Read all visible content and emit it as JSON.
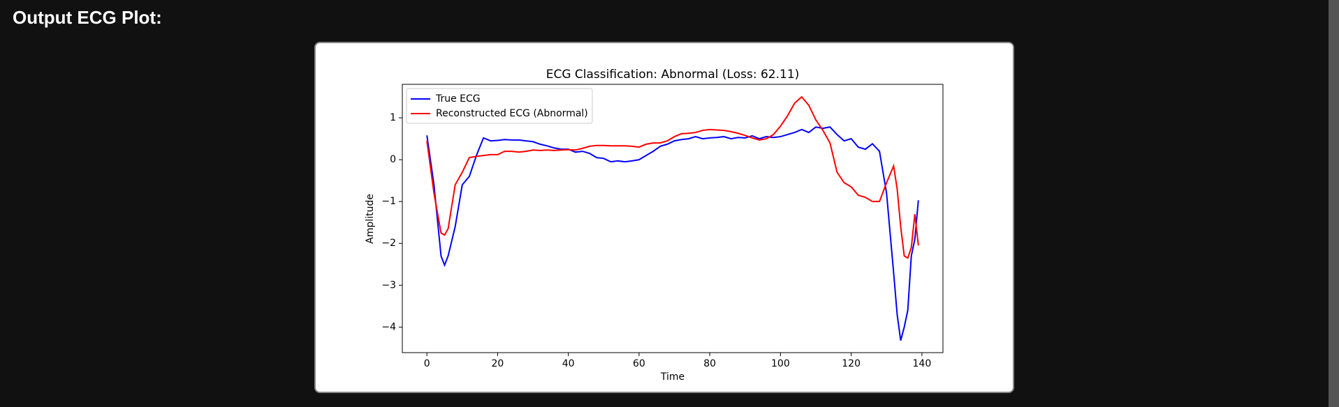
{
  "heading": "Output ECG Plot:",
  "chart_data": {
    "type": "line",
    "title": "ECG Classification: Abnormal (Loss: 62.11)",
    "xlabel": "Time",
    "ylabel": "Amplitude",
    "x": [
      0,
      2,
      4,
      5,
      6,
      8,
      10,
      12,
      14,
      16,
      18,
      20,
      22,
      24,
      26,
      28,
      30,
      32,
      34,
      36,
      38,
      40,
      42,
      44,
      46,
      48,
      50,
      52,
      54,
      56,
      58,
      60,
      62,
      64,
      66,
      68,
      70,
      72,
      74,
      76,
      78,
      80,
      82,
      84,
      86,
      88,
      90,
      92,
      94,
      96,
      98,
      100,
      102,
      104,
      106,
      108,
      110,
      112,
      114,
      116,
      118,
      120,
      122,
      124,
      126,
      128,
      130,
      132,
      133,
      134,
      135,
      136,
      137,
      138,
      139
    ],
    "series": [
      {
        "name": "True ECG",
        "color": "#0000ff",
        "values": [
          0.58,
          -0.6,
          -2.3,
          -2.52,
          -2.3,
          -1.6,
          -0.6,
          -0.4,
          0.1,
          0.52,
          0.45,
          0.46,
          0.48,
          0.47,
          0.47,
          0.45,
          0.43,
          0.37,
          0.33,
          0.28,
          0.25,
          0.25,
          0.18,
          0.2,
          0.15,
          0.05,
          0.03,
          -0.05,
          -0.03,
          -0.05,
          -0.03,
          0.0,
          0.1,
          0.2,
          0.32,
          0.37,
          0.45,
          0.48,
          0.5,
          0.55,
          0.5,
          0.52,
          0.53,
          0.55,
          0.5,
          0.53,
          0.52,
          0.57,
          0.5,
          0.55,
          0.53,
          0.55,
          0.6,
          0.65,
          0.72,
          0.65,
          0.78,
          0.75,
          0.78,
          0.6,
          0.45,
          0.5,
          0.3,
          0.25,
          0.38,
          0.2,
          -0.8,
          -2.7,
          -3.7,
          -4.32,
          -4.0,
          -3.6,
          -2.3,
          -1.9,
          -0.97
        ]
      },
      {
        "name": "Reconstructed ECG (Abnormal)",
        "color": "#ff0000",
        "values": [
          0.45,
          -0.8,
          -1.75,
          -1.8,
          -1.65,
          -0.6,
          -0.3,
          0.05,
          0.08,
          0.1,
          0.12,
          0.12,
          0.2,
          0.2,
          0.18,
          0.2,
          0.23,
          0.22,
          0.23,
          0.22,
          0.23,
          0.24,
          0.23,
          0.27,
          0.32,
          0.34,
          0.34,
          0.33,
          0.33,
          0.33,
          0.32,
          0.3,
          0.37,
          0.4,
          0.4,
          0.45,
          0.55,
          0.62,
          0.63,
          0.65,
          0.7,
          0.72,
          0.71,
          0.7,
          0.67,
          0.63,
          0.58,
          0.52,
          0.47,
          0.5,
          0.6,
          0.8,
          1.05,
          1.35,
          1.5,
          1.3,
          0.95,
          0.7,
          0.4,
          -0.3,
          -0.55,
          -0.65,
          -0.85,
          -0.9,
          -1.0,
          -1.0,
          -0.55,
          -0.15,
          -0.7,
          -1.6,
          -2.3,
          -2.35,
          -2.1,
          -1.3,
          -2.05
        ]
      }
    ],
    "xlim": [
      -6.95,
      145.95
    ],
    "ylim": [
      -4.61,
      1.8
    ],
    "xticks": [
      0,
      20,
      40,
      60,
      80,
      100,
      120,
      140
    ],
    "yticks": [
      {
        "value": -4,
        "label": "−4"
      },
      {
        "value": -3,
        "label": "−3"
      },
      {
        "value": -2,
        "label": "−2"
      },
      {
        "value": -1,
        "label": "−1"
      },
      0,
      1
    ],
    "legend": "upper left"
  }
}
